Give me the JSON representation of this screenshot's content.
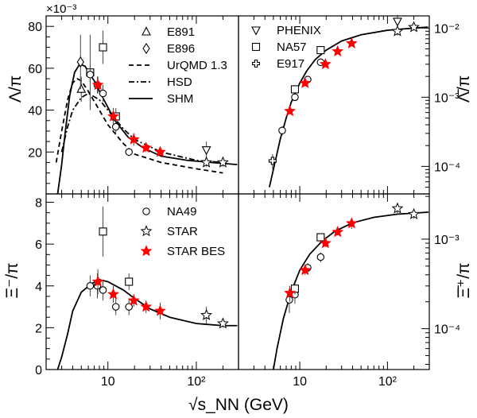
{
  "chart_data": [
    {
      "panel": "top-left",
      "type": "scatter",
      "ylabel": "Λ/π",
      "multiplier_label": "×10⁻³",
      "xscale": "log",
      "xlim": [
        2,
        300
      ],
      "ylim": [
        0,
        0.085
      ],
      "yticks": [
        {
          "v": 0.02,
          "label": "20"
        },
        {
          "v": 0.04,
          "label": "40"
        },
        {
          "v": 0.06,
          "label": "60"
        },
        {
          "v": 0.08,
          "label": "80"
        }
      ],
      "xticks": [],
      "series": [
        {
          "name": "E891",
          "marker": "triangle",
          "points": [
            {
              "x": 5.0,
              "y": 0.05,
              "err": 0.006
            }
          ]
        },
        {
          "name": "E896",
          "marker": "diamond",
          "points": [
            {
              "x": 4.9,
              "y": 0.063,
              "err": 0.013
            }
          ]
        },
        {
          "name": "",
          "marker": "square",
          "points": [
            {
              "x": 6.3,
              "y": 0.058,
              "err": 0.018
            },
            {
              "x": 8.8,
              "y": 0.07,
              "err": 0.008
            },
            {
              "x": 12.3,
              "y": 0.037,
              "err": 0.004
            }
          ]
        },
        {
          "name": "",
          "marker": "circle",
          "points": [
            {
              "x": 6.3,
              "y": 0.057,
              "err": 0.004
            },
            {
              "x": 7.6,
              "y": 0.052,
              "err": 0.004
            },
            {
              "x": 8.8,
              "y": 0.048,
              "err": 0.004
            },
            {
              "x": 12.3,
              "y": 0.032,
              "err": 0.003
            },
            {
              "x": 17.3,
              "y": 0.02,
              "err": 0.002
            }
          ]
        },
        {
          "name": "",
          "marker": "star-red",
          "points": [
            {
              "x": 7.7,
              "y": 0.052,
              "err": 0.004
            },
            {
              "x": 11.5,
              "y": 0.037,
              "err": 0.004
            },
            {
              "x": 19.6,
              "y": 0.026,
              "err": 0.003
            },
            {
              "x": 27.0,
              "y": 0.022,
              "err": 0.002
            },
            {
              "x": 39.0,
              "y": 0.02,
              "err": 0.002
            }
          ]
        },
        {
          "name": "",
          "marker": "inverted-triangle",
          "points": [
            {
              "x": 130,
              "y": 0.021,
              "err": 0.004
            }
          ]
        },
        {
          "name": "",
          "marker": "star",
          "points": [
            {
              "x": 130,
              "y": 0.015,
              "err": 0.002
            },
            {
              "x": 200,
              "y": 0.015,
              "err": 0.002
            }
          ]
        }
      ],
      "curves": [
        {
          "name": "UrQMD 1.3",
          "style": "dashed",
          "points": [
            [
              2.6,
              0.015
            ],
            [
              3.0,
              0.03
            ],
            [
              3.5,
              0.045
            ],
            [
              4.0,
              0.053
            ],
            [
              4.5,
              0.055
            ],
            [
              5.0,
              0.054
            ],
            [
              6.0,
              0.049
            ],
            [
              8.0,
              0.04
            ],
            [
              10.0,
              0.033
            ],
            [
              15.0,
              0.024
            ],
            [
              20.0,
              0.019
            ],
            [
              40.0,
              0.015
            ],
            [
              100.0,
              0.012
            ],
            [
              200.0,
              0.01
            ]
          ]
        },
        {
          "name": "HSD",
          "style": "dashdot",
          "points": [
            [
              3.0,
              0.02
            ],
            [
              3.5,
              0.032
            ],
            [
              4.0,
              0.04
            ],
            [
              5.0,
              0.046
            ],
            [
              6.0,
              0.048
            ],
            [
              8.0,
              0.045
            ],
            [
              10.0,
              0.04
            ],
            [
              15.0,
              0.031
            ],
            [
              20.0,
              0.026
            ],
            [
              40.0,
              0.02
            ],
            [
              100.0,
              0.016
            ],
            [
              200.0,
              0.015
            ]
          ]
        },
        {
          "name": "SHM",
          "style": "solid",
          "points": [
            [
              2.7,
              0.0
            ],
            [
              3.0,
              0.014
            ],
            [
              3.3,
              0.03
            ],
            [
              3.7,
              0.047
            ],
            [
              4.2,
              0.058
            ],
            [
              4.8,
              0.062
            ],
            [
              5.5,
              0.061
            ],
            [
              7.0,
              0.054
            ],
            [
              9.0,
              0.045
            ],
            [
              12.0,
              0.035
            ],
            [
              17.0,
              0.027
            ],
            [
              25.0,
              0.022
            ],
            [
              40.0,
              0.018
            ],
            [
              80.0,
              0.016
            ],
            [
              150.0,
              0.015
            ],
            [
              290.0,
              0.014
            ]
          ]
        }
      ]
    },
    {
      "panel": "top-right",
      "type": "scatter",
      "ylabel": "Λ̄/π",
      "xscale": "log",
      "yscale": "log",
      "xlim": [
        2,
        300
      ],
      "ylim": [
        4e-05,
        0.015
      ],
      "yticks": [
        {
          "v": 0.0001,
          "label": "10⁻⁴"
        },
        {
          "v": 0.001,
          "label": "10⁻³"
        },
        {
          "v": 0.01,
          "label": "10⁻²"
        }
      ],
      "xticks": [],
      "series": [
        {
          "name": "PHENIX",
          "marker": "inverted-triangle",
          "points": [
            {
              "x": 130,
              "y": 0.0125,
              "err": 0.003
            }
          ]
        },
        {
          "name": "NA57",
          "marker": "square",
          "points": [
            {
              "x": 8.8,
              "y": 0.0013,
              "err": 0.0002
            },
            {
              "x": 17.3,
              "y": 0.0048,
              "err": 0.0004
            }
          ]
        },
        {
          "name": "E917",
          "marker": "cross",
          "points": [
            {
              "x": 4.9,
              "y": 0.00012,
              "err": 3e-05
            }
          ]
        },
        {
          "name": "",
          "marker": "circle",
          "points": [
            {
              "x": 6.3,
              "y": 0.00033,
              "err": 5e-05
            },
            {
              "x": 8.8,
              "y": 0.001,
              "err": 0.0001
            },
            {
              "x": 12.3,
              "y": 0.0018,
              "err": 0.0002
            },
            {
              "x": 17.3,
              "y": 0.0032,
              "err": 0.0003
            }
          ]
        },
        {
          "name": "",
          "marker": "star-red",
          "points": [
            {
              "x": 7.7,
              "y": 0.00063,
              "err": 6e-05
            },
            {
              "x": 11.5,
              "y": 0.0016,
              "err": 0.00015
            },
            {
              "x": 19.6,
              "y": 0.003,
              "err": 0.0002
            },
            {
              "x": 27.0,
              "y": 0.0046,
              "err": 0.0003
            },
            {
              "x": 39.0,
              "y": 0.006,
              "err": 0.0004
            }
          ]
        },
        {
          "name": "",
          "marker": "star",
          "points": [
            {
              "x": 130,
              "y": 0.009,
              "err": 0.0012
            },
            {
              "x": 200,
              "y": 0.0103,
              "err": 0.001
            }
          ]
        }
      ],
      "curves": [
        {
          "name": "",
          "style": "solid",
          "points": [
            [
              4.5,
              5e-05
            ],
            [
              5.0,
              9e-05
            ],
            [
              6.0,
              0.00025
            ],
            [
              7.0,
              0.0005
            ],
            [
              8.0,
              0.00085
            ],
            [
              10.0,
              0.0016
            ],
            [
              12.0,
              0.0024
            ],
            [
              15.0,
              0.0035
            ],
            [
              20.0,
              0.0048
            ],
            [
              30.0,
              0.0065
            ],
            [
              50.0,
              0.008
            ],
            [
              100.0,
              0.0093
            ],
            [
              200.0,
              0.01
            ],
            [
              290.0,
              0.0103
            ]
          ]
        }
      ]
    },
    {
      "panel": "bottom-left",
      "type": "scatter",
      "ylabel": "Ξ⁻/π",
      "xscale": "log",
      "xlim": [
        2,
        300
      ],
      "ylim": [
        0,
        0.0084
      ],
      "yticks": [
        {
          "v": 0,
          "label": "0"
        },
        {
          "v": 0.002,
          "label": "2"
        },
        {
          "v": 0.004,
          "label": "4"
        },
        {
          "v": 0.006,
          "label": "6"
        },
        {
          "v": 0.008,
          "label": "8"
        }
      ],
      "xticks": [
        {
          "v": 10,
          "label": "10"
        },
        {
          "v": 100,
          "label": "10²"
        }
      ],
      "series": [
        {
          "name": "NA49",
          "marker": "circle",
          "points": [
            {
              "x": 6.3,
              "y": 0.004,
              "err": 0.0005
            },
            {
              "x": 7.6,
              "y": 0.004,
              "err": 0.0006
            },
            {
              "x": 8.8,
              "y": 0.0038,
              "err": 0.0005
            },
            {
              "x": 12.3,
              "y": 0.003,
              "err": 0.0004
            },
            {
              "x": 17.3,
              "y": 0.003,
              "err": 0.0004
            }
          ]
        },
        {
          "name": "STAR",
          "marker": "star",
          "points": [
            {
              "x": 130,
              "y": 0.0026,
              "err": 0.0004
            },
            {
              "x": 200,
              "y": 0.0022,
              "err": 0.0002
            }
          ]
        },
        {
          "name": "STAR BES",
          "marker": "star-red",
          "points": [
            {
              "x": 7.7,
              "y": 0.0042,
              "err": 0.0006
            },
            {
              "x": 11.5,
              "y": 0.0036,
              "err": 0.0004
            },
            {
              "x": 19.6,
              "y": 0.0033,
              "err": 0.0003
            },
            {
              "x": 27.0,
              "y": 0.003,
              "err": 0.0003
            },
            {
              "x": 39.0,
              "y": 0.0028,
              "err": 0.0004
            }
          ]
        },
        {
          "name": "",
          "marker": "square",
          "points": [
            {
              "x": 8.8,
              "y": 0.0066,
              "err": 0.0012
            },
            {
              "x": 17.3,
              "y": 0.0042,
              "err": 0.0004
            }
          ]
        }
      ],
      "curves": [
        {
          "name": "",
          "style": "solid",
          "points": [
            [
              2.7,
              0.0
            ],
            [
              3.0,
              0.0006
            ],
            [
              3.5,
              0.0017
            ],
            [
              4.0,
              0.0028
            ],
            [
              5.0,
              0.0037
            ],
            [
              6.5,
              0.0041
            ],
            [
              8.0,
              0.0043
            ],
            [
              10.0,
              0.0042
            ],
            [
              15.0,
              0.0038
            ],
            [
              20.0,
              0.0034
            ],
            [
              30.0,
              0.0029
            ],
            [
              50.0,
              0.0025
            ],
            [
              100.0,
              0.0022
            ],
            [
              200.0,
              0.0021
            ],
            [
              290.0,
              0.0021
            ]
          ]
        }
      ]
    },
    {
      "panel": "bottom-right",
      "type": "scatter",
      "ylabel": "Ξ̄⁺/π",
      "xscale": "log",
      "yscale": "log",
      "xlim": [
        2,
        300
      ],
      "ylim": [
        3.5e-05,
        0.0032
      ],
      "yticks": [
        {
          "v": 0.0001,
          "label": "10⁻⁴"
        },
        {
          "v": 0.001,
          "label": "10⁻³"
        }
      ],
      "xticks": [
        {
          "v": 10,
          "label": "10"
        },
        {
          "v": 100,
          "label": "10²"
        }
      ],
      "series": [
        {
          "name": "",
          "marker": "circle",
          "points": [
            {
              "x": 7.6,
              "y": 0.00021,
              "err": 6e-05
            },
            {
              "x": 8.8,
              "y": 0.00024,
              "err": 5e-05
            },
            {
              "x": 12.3,
              "y": 0.00048,
              "err": 6e-05
            },
            {
              "x": 17.3,
              "y": 0.00063,
              "err": 8e-05
            }
          ]
        },
        {
          "name": "",
          "marker": "square",
          "points": [
            {
              "x": 8.8,
              "y": 0.00028,
              "err": 4e-05
            },
            {
              "x": 17.3,
              "y": 0.00105,
              "err": 0.0001
            }
          ]
        },
        {
          "name": "",
          "marker": "star-red",
          "points": [
            {
              "x": 7.7,
              "y": 0.00025,
              "err": 5e-05
            },
            {
              "x": 11.5,
              "y": 0.00045,
              "err": 5e-05
            },
            {
              "x": 19.6,
              "y": 0.0009,
              "err": 8e-05
            },
            {
              "x": 27.0,
              "y": 0.0012,
              "err": 0.0001
            },
            {
              "x": 39.0,
              "y": 0.0015,
              "err": 0.0002
            }
          ]
        },
        {
          "name": "",
          "marker": "star",
          "points": [
            {
              "x": 130,
              "y": 0.0022,
              "err": 0.0003
            },
            {
              "x": 200,
              "y": 0.0019,
              "err": 0.0002
            }
          ]
        }
      ],
      "curves": [
        {
          "name": "",
          "style": "solid",
          "points": [
            [
              5.0,
              3.5e-05
            ],
            [
              5.5,
              6e-05
            ],
            [
              6.5,
              0.00013
            ],
            [
              8.0,
              0.00026
            ],
            [
              10.0,
              0.00045
            ],
            [
              13.0,
              0.00068
            ],
            [
              18.0,
              0.00095
            ],
            [
              25.0,
              0.00122
            ],
            [
              40.0,
              0.00152
            ],
            [
              70.0,
              0.00175
            ],
            [
              130.0,
              0.0019
            ],
            [
              290.0,
              0.002
            ]
          ]
        }
      ]
    }
  ],
  "x_axis_title": "√s_NN (GeV)",
  "legends": {
    "top_left": [
      "E891",
      "E896",
      "UrQMD 1.3",
      "HSD",
      "SHM"
    ],
    "top_right": [
      "PHENIX",
      "NA57",
      "E917"
    ],
    "bottom_left": [
      "NA49",
      "STAR",
      "STAR BES"
    ]
  },
  "colors": {
    "star_bes": "#ff0000",
    "axis": "#000000",
    "marker": "#000000"
  }
}
